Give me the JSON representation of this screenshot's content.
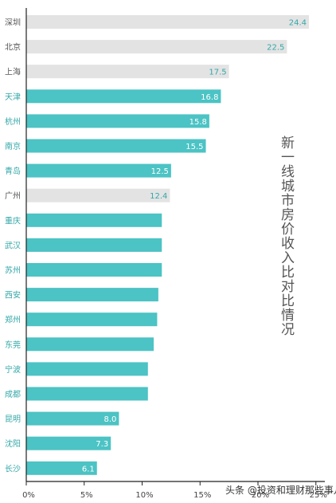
{
  "chart_data": {
    "type": "bar",
    "orientation": "horizontal",
    "title": "新一线城市房价收入比对比情况",
    "categories": [
      "深圳",
      "北京",
      "上海",
      "天津",
      "杭州",
      "南京",
      "青岛",
      "广州",
      "重庆",
      "武汉",
      "苏州",
      "西安",
      "郑州",
      "东莞",
      "宁波",
      "成都",
      "昆明",
      "沈阳",
      "长沙"
    ],
    "values": [
      24.4,
      22.5,
      17.5,
      16.8,
      15.8,
      15.5,
      12.5,
      12.4,
      11.7,
      11.7,
      11.7,
      11.4,
      11.3,
      11.0,
      10.5,
      10.5,
      8.0,
      7.3,
      6.1
    ],
    "value_labels": [
      "24.4",
      "22.5",
      "17.5",
      "16.8",
      "15.8",
      "15.5",
      "12.5",
      "12.4",
      "",
      "",
      "",
      "",
      "",
      "",
      "",
      "",
      "8.0",
      "7.3",
      "6.1"
    ],
    "groups": [
      "一线",
      "一线",
      "一线",
      "新一线",
      "新一线",
      "新一线",
      "新一线",
      "一线",
      "新一线",
      "新一线",
      "新一线",
      "新一线",
      "新一线",
      "新一线",
      "新一线",
      "新一线",
      "新一线",
      "新一线",
      "新一线"
    ],
    "x_ticks": [
      "0%",
      "5%",
      "10%",
      "15%",
      "20%",
      "25%"
    ],
    "xlim": [
      0,
      25
    ],
    "grid": false,
    "legend": "none",
    "colors": {
      "first_tier_bar": "#e3e3e3",
      "new_first_tier_bar": "#4cc3c4",
      "first_tier_label": "#555555",
      "new_first_tier_label": "#35a7a8",
      "first_tier_value": "#35a7a8",
      "new_first_tier_value": "#ffffff"
    }
  },
  "watermark": "头条 @投资和理财那些事儿"
}
